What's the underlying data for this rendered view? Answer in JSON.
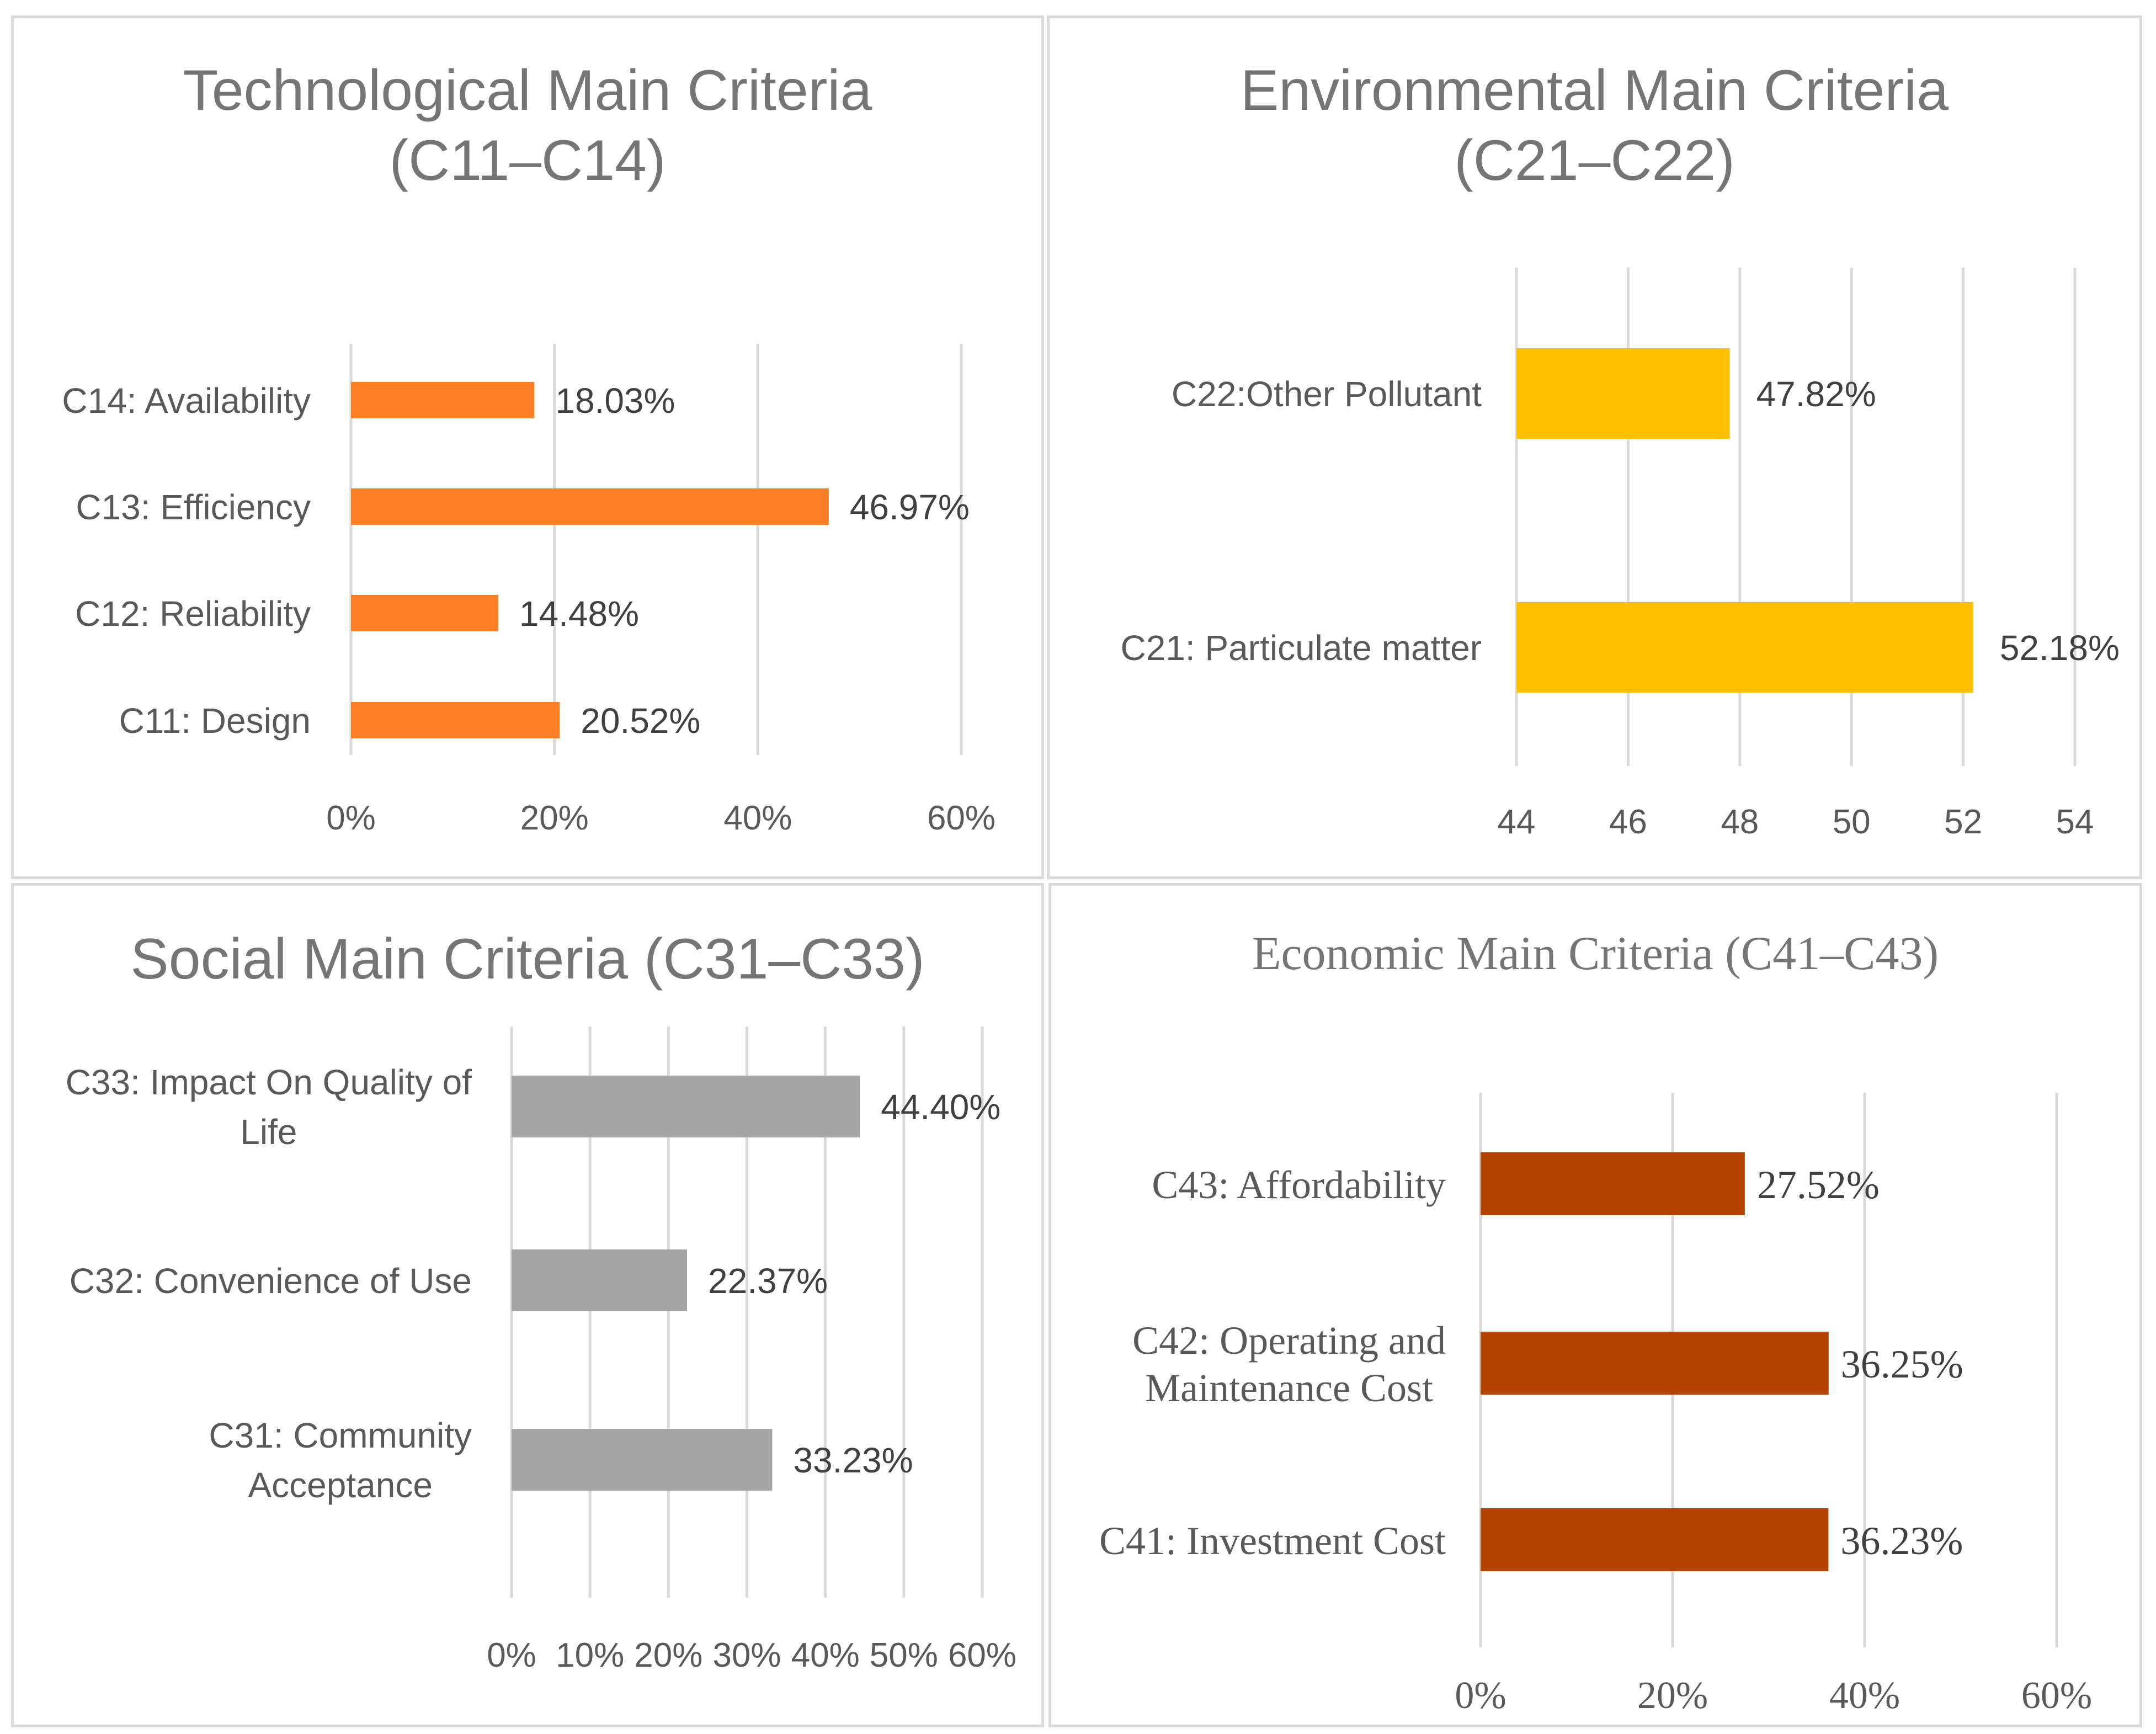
{
  "colors": {
    "technological": "#ff7f27",
    "environmental": "#ffc000",
    "social": "#a5a5a5",
    "economic": "#b34400",
    "grid": "#d9d9d9"
  },
  "chart_data": [
    {
      "type": "bar",
      "orientation": "horizontal",
      "title_lines": [
        "Technological Main Criteria",
        "(C11–C14)"
      ],
      "categories": [
        "C14: Availability",
        "C13: Efficiency",
        "C12: Reliability",
        "C11: Design"
      ],
      "values": [
        18.03,
        46.97,
        14.48,
        20.52
      ],
      "value_labels": [
        "18.03%",
        "46.97%",
        "14.48%",
        "20.52%"
      ],
      "xlim": [
        0,
        60
      ],
      "ticks": [
        0,
        20,
        40,
        60
      ],
      "tick_labels": [
        "0%",
        "20%",
        "40%",
        "60%"
      ],
      "grid": true
    },
    {
      "type": "bar",
      "orientation": "horizontal",
      "title_lines": [
        "Environmental Main Criteria",
        "(C21–C22)"
      ],
      "categories": [
        "C22:Other Pollutant",
        "C21: Particulate matter"
      ],
      "values": [
        47.82,
        52.18
      ],
      "value_labels": [
        "47.82%",
        "52.18%"
      ],
      "xlim": [
        44,
        54
      ],
      "ticks": [
        44,
        46,
        48,
        50,
        52,
        54
      ],
      "tick_labels": [
        "44",
        "46",
        "48",
        "50",
        "52",
        "54"
      ],
      "grid": true
    },
    {
      "type": "bar",
      "orientation": "horizontal",
      "title_lines": [
        "Social Main Criteria (C31–C33)"
      ],
      "categories": [
        [
          "C33: Impact On Quality of",
          "Life"
        ],
        [
          "C32: Convenience of Use"
        ],
        [
          "C31: Community",
          "Acceptance"
        ]
      ],
      "values": [
        44.4,
        22.37,
        33.23
      ],
      "value_labels": [
        "44.40%",
        "22.37%",
        "33.23%"
      ],
      "xlim": [
        0,
        60
      ],
      "ticks": [
        0,
        10,
        20,
        30,
        40,
        50,
        60
      ],
      "tick_labels": [
        "0%",
        "10%",
        "20%",
        "30%",
        "40%",
        "50%",
        "60%"
      ],
      "grid": true
    },
    {
      "type": "bar",
      "orientation": "horizontal",
      "title_lines": [
        "Economic Main Criteria (C41–C43)"
      ],
      "categories": [
        [
          "C43: Affordability"
        ],
        [
          "C42: Operating and",
          "Maintenance Cost"
        ],
        [
          "C41: Investment Cost"
        ]
      ],
      "values": [
        27.52,
        36.25,
        36.23
      ],
      "value_labels": [
        "27.52%",
        "36.25%",
        "36.23%"
      ],
      "xlim": [
        0,
        60
      ],
      "ticks": [
        0,
        20,
        40,
        60
      ],
      "tick_labels": [
        "0%",
        "20%",
        "40%",
        "60%"
      ],
      "grid": true
    }
  ]
}
